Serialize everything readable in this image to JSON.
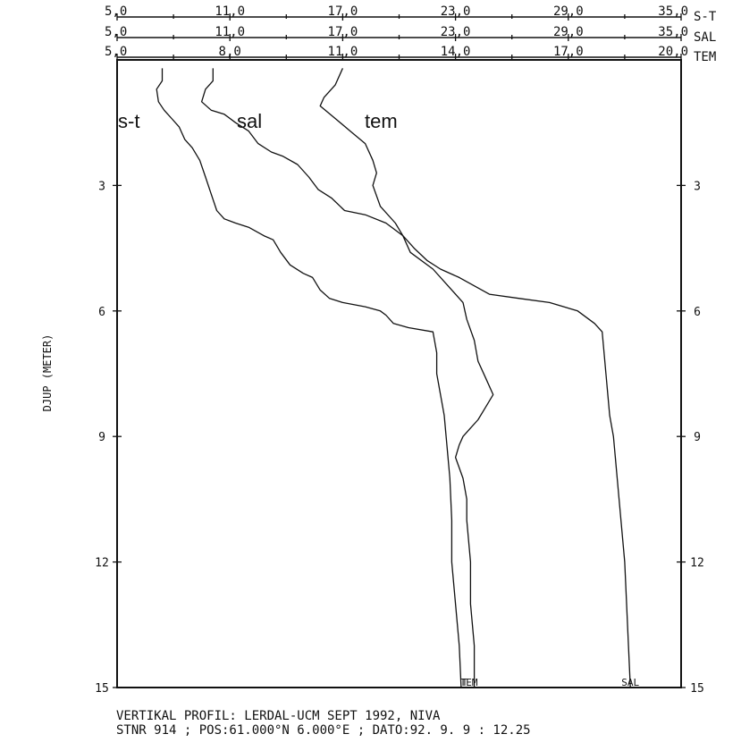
{
  "chart_data": {
    "type": "line",
    "title": "",
    "ylabel": "DJUP (METER)",
    "ylim": [
      0,
      15
    ],
    "y_reversed": true,
    "y_ticks": [
      {
        "value": 3,
        "label": "3"
      },
      {
        "value": 6,
        "label": "6"
      },
      {
        "value": 9,
        "label": "9"
      },
      {
        "value": 12,
        "label": "12"
      },
      {
        "value": 15,
        "label": "15"
      }
    ],
    "x_axes": [
      {
        "code": "S-T",
        "range": [
          5,
          35
        ],
        "tick_labels": [
          "5,0",
          "11,0",
          "17,0",
          "23,0",
          "29,0",
          "35,0"
        ],
        "tick_values": [
          5,
          11,
          17,
          23,
          29,
          35
        ]
      },
      {
        "code": "SAL",
        "range": [
          5,
          35
        ],
        "tick_labels": [
          "5,0",
          "11,0",
          "17,0",
          "23,0",
          "29,0",
          "35,0"
        ],
        "tick_values": [
          5,
          11,
          17,
          23,
          29,
          35
        ]
      },
      {
        "code": "TEM",
        "range": [
          5,
          20
        ],
        "tick_labels": [
          "5,0",
          "8,0",
          "11,0",
          "14,0",
          "17,0",
          "20,0"
        ],
        "tick_values": [
          5,
          8,
          11,
          14,
          17,
          20
        ]
      }
    ],
    "series": [
      {
        "key": "st",
        "axis": 0,
        "name": "s-t",
        "end_label": "T",
        "points": [
          [
            7.4,
            0.2
          ],
          [
            7.4,
            0.5
          ],
          [
            7.1,
            0.7
          ],
          [
            7.2,
            1.0
          ],
          [
            7.5,
            1.2
          ],
          [
            7.9,
            1.4
          ],
          [
            8.3,
            1.6
          ],
          [
            8.6,
            1.9
          ],
          [
            9.0,
            2.1
          ],
          [
            9.4,
            2.4
          ],
          [
            9.7,
            2.8
          ],
          [
            10.0,
            3.2
          ],
          [
            10.3,
            3.6
          ],
          [
            10.7,
            3.8
          ],
          [
            11.3,
            3.9
          ],
          [
            12.0,
            4.0
          ],
          [
            12.8,
            4.2
          ],
          [
            13.3,
            4.3
          ],
          [
            13.7,
            4.6
          ],
          [
            14.2,
            4.9
          ],
          [
            14.9,
            5.1
          ],
          [
            15.4,
            5.2
          ],
          [
            15.8,
            5.5
          ],
          [
            16.3,
            5.7
          ],
          [
            17.0,
            5.8
          ],
          [
            18.2,
            5.9
          ],
          [
            19.0,
            6.0
          ],
          [
            19.3,
            6.1
          ],
          [
            19.7,
            6.3
          ],
          [
            20.5,
            6.4
          ],
          [
            21.8,
            6.5
          ],
          [
            22.0,
            7.0
          ],
          [
            22.0,
            7.5
          ],
          [
            22.2,
            8.0
          ],
          [
            22.4,
            8.5
          ],
          [
            22.5,
            9.0
          ],
          [
            22.7,
            10.0
          ],
          [
            22.8,
            11.0
          ],
          [
            22.8,
            12.0
          ],
          [
            23.0,
            13.0
          ],
          [
            23.2,
            14.0
          ],
          [
            23.3,
            15.0
          ]
        ]
      },
      {
        "key": "sal",
        "axis": 1,
        "name": "sal",
        "end_label": "SAL",
        "points": [
          [
            10.1,
            0.2
          ],
          [
            10.1,
            0.5
          ],
          [
            9.7,
            0.7
          ],
          [
            9.5,
            1.0
          ],
          [
            10.0,
            1.2
          ],
          [
            10.7,
            1.3
          ],
          [
            11.3,
            1.5
          ],
          [
            12.0,
            1.7
          ],
          [
            12.5,
            2.0
          ],
          [
            13.2,
            2.2
          ],
          [
            13.8,
            2.3
          ],
          [
            14.6,
            2.5
          ],
          [
            15.2,
            2.8
          ],
          [
            15.7,
            3.1
          ],
          [
            16.4,
            3.3
          ],
          [
            17.1,
            3.6
          ],
          [
            18.2,
            3.7
          ],
          [
            19.3,
            3.9
          ],
          [
            20.2,
            4.2
          ],
          [
            20.8,
            4.5
          ],
          [
            21.5,
            4.8
          ],
          [
            22.2,
            5.0
          ],
          [
            23.2,
            5.2
          ],
          [
            24.8,
            5.6
          ],
          [
            26.4,
            5.7
          ],
          [
            28.0,
            5.8
          ],
          [
            29.5,
            6.0
          ],
          [
            30.4,
            6.3
          ],
          [
            30.8,
            6.5
          ],
          [
            30.9,
            7.0
          ],
          [
            31.0,
            7.5
          ],
          [
            31.1,
            8.0
          ],
          [
            31.2,
            8.5
          ],
          [
            31.4,
            9.0
          ],
          [
            31.5,
            9.5
          ],
          [
            31.6,
            10.0
          ],
          [
            31.7,
            10.5
          ],
          [
            31.8,
            11.0
          ],
          [
            31.9,
            11.5
          ],
          [
            32.0,
            12.0
          ],
          [
            32.1,
            13.0
          ],
          [
            32.2,
            14.0
          ],
          [
            32.3,
            15.0
          ]
        ]
      },
      {
        "key": "tem",
        "axis": 2,
        "name": "tem",
        "end_label": "TEM",
        "points": [
          [
            11.0,
            0.2
          ],
          [
            10.8,
            0.6
          ],
          [
            10.5,
            0.9
          ],
          [
            10.4,
            1.1
          ],
          [
            10.8,
            1.4
          ],
          [
            11.2,
            1.7
          ],
          [
            11.6,
            2.0
          ],
          [
            11.8,
            2.4
          ],
          [
            11.9,
            2.7
          ],
          [
            11.8,
            3.0
          ],
          [
            12.0,
            3.5
          ],
          [
            12.4,
            3.9
          ],
          [
            12.6,
            4.2
          ],
          [
            12.8,
            4.6
          ],
          [
            13.4,
            5.0
          ],
          [
            13.8,
            5.4
          ],
          [
            14.2,
            5.8
          ],
          [
            14.3,
            6.2
          ],
          [
            14.5,
            6.7
          ],
          [
            14.6,
            7.2
          ],
          [
            14.8,
            7.6
          ],
          [
            15.0,
            8.0
          ],
          [
            14.8,
            8.3
          ],
          [
            14.6,
            8.6
          ],
          [
            14.4,
            8.8
          ],
          [
            14.2,
            9.0
          ],
          [
            14.1,
            9.2
          ],
          [
            14.0,
            9.5
          ],
          [
            14.2,
            10.0
          ],
          [
            14.3,
            10.5
          ],
          [
            14.3,
            11.0
          ],
          [
            14.4,
            12.0
          ],
          [
            14.4,
            13.0
          ],
          [
            14.5,
            14.0
          ],
          [
            14.5,
            15.0
          ]
        ]
      }
    ],
    "caption_lines": [
      "VERTIKAL PROFIL: LERDAL-UCM SEPT 1992, NIVA",
      "STNR 914 ; POS:61.000°N  6.000°E ; DATO:92. 9. 9 : 12.25"
    ]
  }
}
